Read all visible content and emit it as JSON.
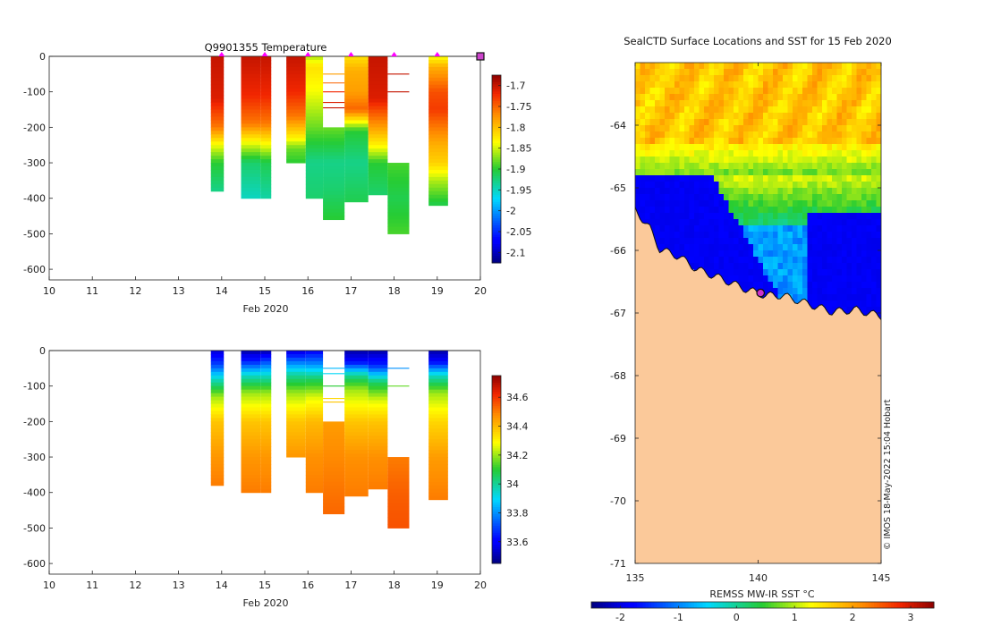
{
  "chart_data": [
    {
      "type": "heatmap",
      "title": "Q9901355  Temperature",
      "xlabel": "Feb 2020",
      "ylabel": "",
      "xlim": [
        10,
        20
      ],
      "ylim": [
        -630,
        0
      ],
      "x_ticks": [
        "10",
        "11",
        "12",
        "13",
        "14",
        "15",
        "16",
        "17",
        "18",
        "19",
        "20"
      ],
      "y_ticks": [
        "0",
        "-100",
        "-200",
        "-300",
        "-400",
        "-500",
        "-600"
      ],
      "colorbar": {
        "range": [
          -2.125,
          -1.675
        ],
        "ticks": [
          "-1.7",
          "-1.75",
          "-1.8",
          "-1.85",
          "-1.9",
          "-1.95",
          "-2",
          "-2.05",
          "-2.1"
        ],
        "tick_values": [
          -1.7,
          -1.75,
          -1.8,
          -1.85,
          -1.9,
          -1.95,
          -2,
          -2.05,
          -2.1
        ]
      },
      "surface_markers": [
        14,
        15,
        16,
        17,
        18,
        19
      ],
      "end_marker": 20,
      "profiles": [
        {
          "x0": 13.75,
          "x1": 14.05,
          "depth": 380,
          "stops": [
            [
              0,
              -1.7
            ],
            [
              120,
              -1.71
            ],
            [
              200,
              -1.76
            ],
            [
              250,
              -1.84
            ],
            [
              300,
              -1.9
            ],
            [
              380,
              -1.93
            ]
          ]
        },
        {
          "x0": 14.45,
          "x1": 14.9,
          "depth": 400,
          "stops": [
            [
              0,
              -1.7
            ],
            [
              110,
              -1.72
            ],
            [
              190,
              -1.76
            ],
            [
              250,
              -1.85
            ],
            [
              300,
              -1.92
            ],
            [
              400,
              -1.95
            ]
          ]
        },
        {
          "x0": 14.9,
          "x1": 15.15,
          "depth": 400,
          "stops": [
            [
              0,
              -1.7
            ],
            [
              110,
              -1.72
            ],
            [
              190,
              -1.76
            ],
            [
              250,
              -1.84
            ],
            [
              300,
              -1.91
            ],
            [
              400,
              -1.94
            ]
          ]
        },
        {
          "x0": 15.5,
          "x1": 15.95,
          "depth": 300,
          "stops": [
            [
              0,
              -1.7
            ],
            [
              100,
              -1.72
            ],
            [
              170,
              -1.76
            ],
            [
              230,
              -1.83
            ],
            [
              260,
              -1.88
            ],
            [
              300,
              -1.9
            ]
          ]
        },
        {
          "x0": 15.95,
          "x1": 16.35,
          "depth": 400,
          "stops": [
            [
              0,
              -1.86
            ],
            [
              30,
              -1.82
            ],
            [
              100,
              -1.84
            ],
            [
              200,
              -1.88
            ],
            [
              300,
              -1.93
            ],
            [
              400,
              -1.92
            ]
          ]
        },
        {
          "x0": 16.35,
          "x1": 16.85,
          "depth": 460,
          "stops": [
            [
              200,
              -1.88
            ],
            [
              300,
              -1.93
            ],
            [
              380,
              -1.92
            ],
            [
              460,
              -1.9
            ]
          ]
        },
        {
          "x0": 16.85,
          "x1": 17.4,
          "depth": 410,
          "stops": [
            [
              0,
              -1.82
            ],
            [
              40,
              -1.79
            ],
            [
              100,
              -1.78
            ],
            [
              150,
              -1.75
            ],
            [
              210,
              -1.9
            ],
            [
              300,
              -1.93
            ],
            [
              410,
              -1.91
            ]
          ]
        },
        {
          "x0": 17.4,
          "x1": 17.85,
          "depth": 390,
          "stops": [
            [
              0,
              -1.7
            ],
            [
              120,
              -1.71
            ],
            [
              200,
              -1.78
            ],
            [
              250,
              -1.83
            ],
            [
              280,
              -1.87
            ],
            [
              300,
              -1.9
            ],
            [
              390,
              -1.92
            ]
          ]
        },
        {
          "x0": 17.85,
          "x1": 18.35,
          "depth": 500,
          "stops": [
            [
              300,
              -1.89
            ],
            [
              400,
              -1.91
            ],
            [
              500,
              -1.89
            ]
          ]
        },
        {
          "x0": 18.8,
          "x1": 19.25,
          "depth": 420,
          "stops": [
            [
              0,
              -1.84
            ],
            [
              30,
              -1.79
            ],
            [
              100,
              -1.74
            ],
            [
              150,
              -1.73
            ],
            [
              250,
              -1.79
            ],
            [
              300,
              -1.81
            ],
            [
              350,
              -1.86
            ],
            [
              420,
              -1.91
            ]
          ]
        }
      ],
      "levels": [
        {
          "x0": 16.35,
          "x1": 16.85,
          "depth": 50,
          "value": -1.78
        },
        {
          "x0": 16.35,
          "x1": 16.85,
          "depth": 75,
          "value": -1.75
        },
        {
          "x0": 16.35,
          "x1": 16.85,
          "depth": 100,
          "value": -1.72
        },
        {
          "x0": 16.35,
          "x1": 16.85,
          "depth": 130,
          "value": -1.71
        },
        {
          "x0": 16.35,
          "x1": 16.85,
          "depth": 145,
          "value": -1.7
        },
        {
          "x0": 17.85,
          "x1": 18.35,
          "depth": 50,
          "value": -1.7
        },
        {
          "x0": 17.85,
          "x1": 18.35,
          "depth": 100,
          "value": -1.7
        }
      ]
    },
    {
      "type": "heatmap",
      "title": "",
      "xlabel": "Feb 2020",
      "ylabel": "",
      "xlim": [
        10,
        20
      ],
      "ylim": [
        -630,
        0
      ],
      "x_ticks": [
        "10",
        "11",
        "12",
        "13",
        "14",
        "15",
        "16",
        "17",
        "18",
        "19",
        "20"
      ],
      "y_ticks": [
        "0",
        "-100",
        "-200",
        "-300",
        "-400",
        "-500",
        "-600"
      ],
      "colorbar": {
        "range": [
          33.45,
          34.75
        ],
        "ticks": [
          "34.6",
          "34.4",
          "34.2",
          "34",
          "33.8",
          "33.6"
        ],
        "tick_values": [
          34.6,
          34.4,
          34.2,
          34.0,
          33.8,
          33.6
        ]
      },
      "profiles": [
        {
          "x0": 13.75,
          "x1": 14.05,
          "depth": 380,
          "stops": [
            [
              0,
              33.55
            ],
            [
              40,
              33.7
            ],
            [
              80,
              33.95
            ],
            [
              130,
              34.2
            ],
            [
              200,
              34.38
            ],
            [
              300,
              34.46
            ],
            [
              380,
              34.5
            ]
          ]
        },
        {
          "x0": 14.45,
          "x1": 14.9,
          "depth": 400,
          "stops": [
            [
              0,
              33.5
            ],
            [
              30,
              33.65
            ],
            [
              70,
              33.95
            ],
            [
              120,
              34.2
            ],
            [
              200,
              34.38
            ],
            [
              300,
              34.46
            ],
            [
              400,
              34.5
            ]
          ]
        },
        {
          "x0": 14.9,
          "x1": 15.15,
          "depth": 400,
          "stops": [
            [
              0,
              33.5
            ],
            [
              30,
              33.7
            ],
            [
              70,
              33.95
            ],
            [
              120,
              34.2
            ],
            [
              200,
              34.38
            ],
            [
              300,
              34.46
            ],
            [
              400,
              34.5
            ]
          ]
        },
        {
          "x0": 15.5,
          "x1": 15.95,
          "depth": 300,
          "stops": [
            [
              0,
              33.55
            ],
            [
              30,
              33.75
            ],
            [
              70,
              34.0
            ],
            [
              120,
              34.2
            ],
            [
              200,
              34.38
            ],
            [
              300,
              34.46
            ]
          ]
        },
        {
          "x0": 15.95,
          "x1": 16.35,
          "depth": 400,
          "stops": [
            [
              0,
              33.6
            ],
            [
              40,
              33.8
            ],
            [
              80,
              34.05
            ],
            [
              130,
              34.25
            ],
            [
              200,
              34.4
            ],
            [
              300,
              34.47
            ],
            [
              400,
              34.5
            ]
          ]
        },
        {
          "x0": 16.35,
          "x1": 16.85,
          "depth": 460,
          "stops": [
            [
              200,
              34.45
            ],
            [
              300,
              34.48
            ],
            [
              460,
              34.53
            ]
          ]
        },
        {
          "x0": 16.85,
          "x1": 17.4,
          "depth": 410,
          "stops": [
            [
              0,
              33.5
            ],
            [
              30,
              33.6
            ],
            [
              70,
              34.0
            ],
            [
              110,
              34.2
            ],
            [
              200,
              34.38
            ],
            [
              300,
              34.47
            ],
            [
              410,
              34.5
            ]
          ]
        },
        {
          "x0": 17.4,
          "x1": 17.85,
          "depth": 390,
          "stops": [
            [
              0,
              33.5
            ],
            [
              40,
              33.65
            ],
            [
              90,
              34.05
            ],
            [
              140,
              34.25
            ],
            [
              200,
              34.38
            ],
            [
              300,
              34.47
            ],
            [
              390,
              34.5
            ]
          ]
        },
        {
          "x0": 17.85,
          "x1": 18.35,
          "depth": 500,
          "stops": [
            [
              300,
              34.5
            ],
            [
              400,
              34.54
            ],
            [
              500,
              34.56
            ]
          ]
        },
        {
          "x0": 18.8,
          "x1": 19.25,
          "depth": 420,
          "stops": [
            [
              0,
              33.5
            ],
            [
              30,
              33.6
            ],
            [
              70,
              33.95
            ],
            [
              120,
              34.2
            ],
            [
              200,
              34.35
            ],
            [
              300,
              34.45
            ],
            [
              420,
              34.5
            ]
          ]
        }
      ],
      "levels": [
        {
          "x0": 16.35,
          "x1": 16.85,
          "depth": 50,
          "value": 33.85
        },
        {
          "x0": 16.35,
          "x1": 16.85,
          "depth": 65,
          "value": 33.9
        },
        {
          "x0": 16.35,
          "x1": 16.85,
          "depth": 100,
          "value": 34.1
        },
        {
          "x0": 16.35,
          "x1": 16.85,
          "depth": 135,
          "value": 34.35
        },
        {
          "x0": 16.35,
          "x1": 16.85,
          "depth": 145,
          "value": 34.38
        },
        {
          "x0": 17.85,
          "x1": 18.35,
          "depth": 50,
          "value": 33.8
        },
        {
          "x0": 17.85,
          "x1": 18.35,
          "depth": 100,
          "value": 34.15
        }
      ]
    },
    {
      "type": "heatmap",
      "title": "SealCTD Surface Locations and SST for 15 Feb 2020",
      "xlabel": "",
      "ylabel": "",
      "xlim": [
        135,
        145
      ],
      "ylim": [
        -71,
        -63
      ],
      "x_ticks": [
        "135",
        "140",
        "145"
      ],
      "x_tick_values": [
        135,
        140,
        145
      ],
      "y_ticks": [
        "-64",
        "-65",
        "-66",
        "-67",
        "-68",
        "-69",
        "-70",
        "-71"
      ],
      "y_tick_values": [
        -64,
        -65,
        -66,
        -67,
        -68,
        -69,
        -70,
        -71
      ],
      "colorbar": {
        "label": "REMSS MW-IR SST °C",
        "range": [
          -2.5,
          3.4
        ],
        "ticks": [
          "-2",
          "-1",
          "0",
          "1",
          "2",
          "3"
        ],
        "tick_values": [
          -2,
          -1,
          0,
          1,
          2,
          3
        ]
      },
      "land_color": "#fbc99a",
      "marker": {
        "lon": 140.1,
        "lat": -66.68
      },
      "credit": "© IMOS 18-May-2022 15:04 Hobart"
    }
  ]
}
